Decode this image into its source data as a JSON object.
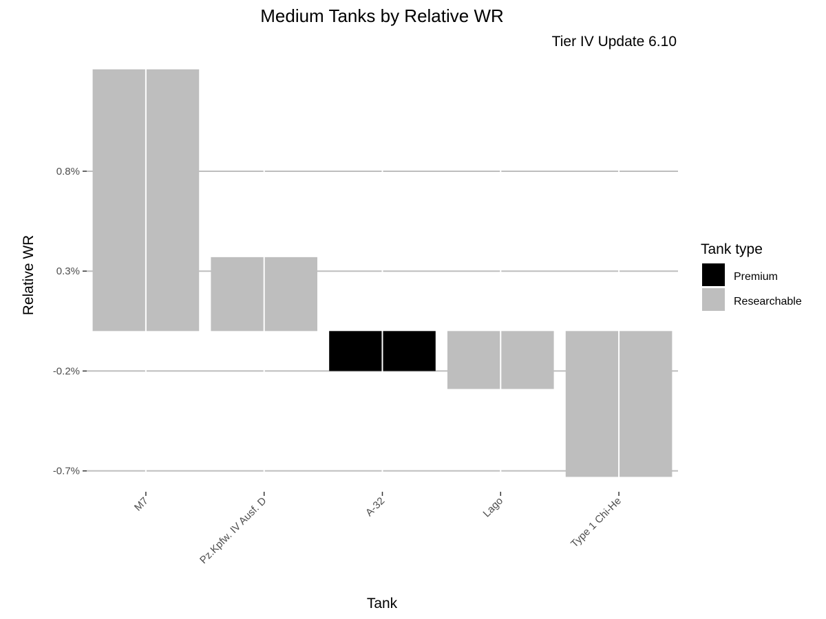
{
  "chart_data": {
    "type": "bar",
    "title": "Medium Tanks by Relative WR",
    "subtitle": "Tier IV Update 6.10",
    "xlabel": "Tank",
    "ylabel": "Relative WR",
    "categories": [
      "M7",
      "Pz.Kpfw. IV Ausf. D",
      "A-32",
      "Lago",
      "Type 1 Chi-He"
    ],
    "values": [
      1.31,
      0.37,
      -0.2,
      -0.29,
      -0.73
    ],
    "bar_types": [
      "Researchable",
      "Researchable",
      "Premium",
      "Researchable",
      "Researchable"
    ],
    "ylim": [
      -0.77,
      1.33
    ],
    "y_ticks": [
      0.8,
      0.3,
      -0.2,
      -0.7
    ],
    "y_tick_labels": [
      "0.8%",
      "0.3%",
      "-0.2%",
      "-0.7%"
    ],
    "grid": "major horizontal",
    "legend": {
      "title": "Tank type",
      "position": "right",
      "entries": [
        {
          "label": "Premium",
          "color": "#000000"
        },
        {
          "label": "Researchable",
          "color": "#bebebe"
        }
      ]
    },
    "colors": {
      "Premium": "#000000",
      "Researchable": "#bebebe"
    }
  }
}
